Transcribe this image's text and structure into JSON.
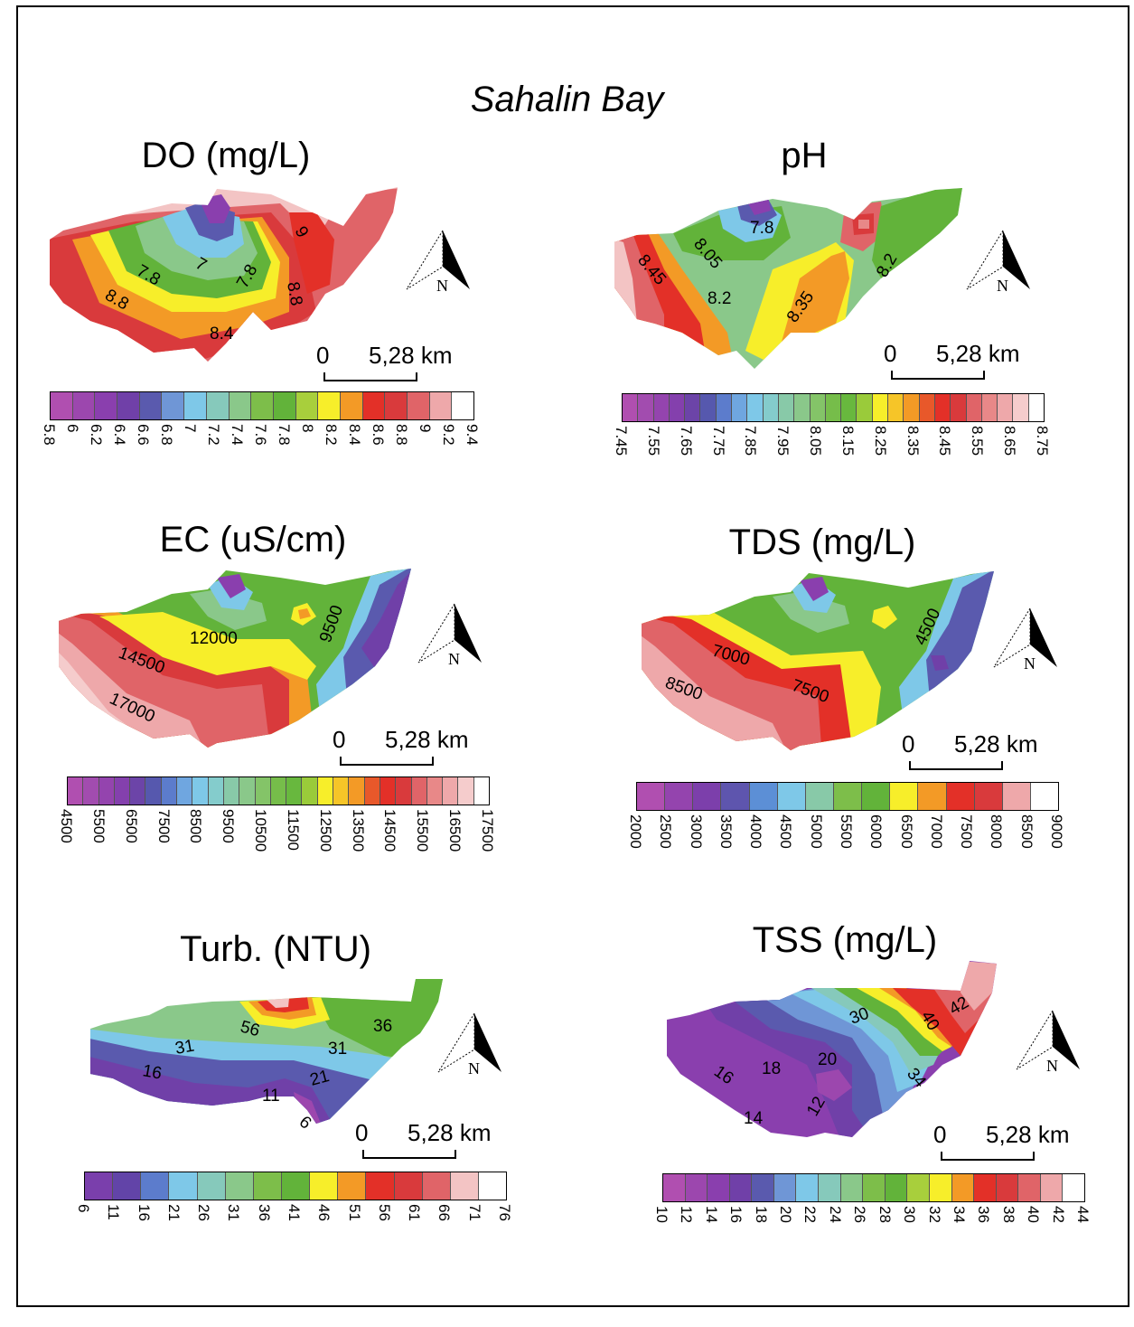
{
  "title": "Sahalin Bay",
  "north_label": "N",
  "scale": {
    "zero": "0",
    "distance": "5,28",
    "unit": "km"
  },
  "panels": [
    {
      "id": "do",
      "title": "DO  (mg/L)",
      "legend_ticks": [
        "5.8",
        "6",
        "6.2",
        "6.4",
        "6.6",
        "6.8",
        "7",
        "7.2",
        "7.4",
        "7.6",
        "7.8",
        "8",
        "8.2",
        "8.4",
        "8.6",
        "8.8",
        "9",
        "9.2",
        "9.4"
      ],
      "legend_colors": [
        "#b04fb0",
        "#9c47ae",
        "#8a3fae",
        "#7040a8",
        "#5a5aae",
        "#6f96d6",
        "#7ec8e8",
        "#86c9bb",
        "#8ac88a",
        "#7dbe4a",
        "#62b33a",
        "#a8cf3c",
        "#f7ee2a",
        "#f39a26",
        "#e33028",
        "#d93a3c",
        "#e06468",
        "#eea8aa",
        "#ffffff"
      ],
      "contour_labels": [
        "7.8",
        "7",
        "7.8",
        "9",
        "8.8",
        "8.8",
        "8.4"
      ]
    },
    {
      "id": "ph",
      "title": "pH",
      "legend_ticks": [
        "7.45",
        "7.55",
        "7.65",
        "7.75",
        "7.85",
        "7.95",
        "8.05",
        "8.15",
        "8.25",
        "8.35",
        "8.45",
        "8.55",
        "8.65",
        "8.75"
      ],
      "legend_colors": [
        "#b04fb0",
        "#a24caf",
        "#9444ae",
        "#8440ad",
        "#6c44a8",
        "#5658ae",
        "#5c7ccc",
        "#6fa6e0",
        "#7ec8e8",
        "#84cccc",
        "#88c9a8",
        "#8ac88a",
        "#84c468",
        "#76bd4a",
        "#68b83e",
        "#9acb3a",
        "#f7ee2a",
        "#f6c528",
        "#f39a26",
        "#e8582a",
        "#e33028",
        "#d93a3c",
        "#e06468",
        "#e88888",
        "#eea8aa",
        "#f5cccc",
        "#ffffff"
      ],
      "contour_labels": [
        "8.45",
        "8.05",
        "7.8",
        "8.2",
        "8.35",
        "8.2"
      ]
    },
    {
      "id": "ec",
      "title": "EC (uS/cm)",
      "legend_ticks": [
        "4500",
        "5500",
        "6500",
        "7500",
        "8500",
        "9500",
        "10500",
        "11500",
        "12500",
        "13500",
        "14500",
        "15500",
        "16500",
        "17500"
      ],
      "legend_colors": [
        "#b04fb0",
        "#a24caf",
        "#9444ae",
        "#8440ad",
        "#6c44a8",
        "#5658ae",
        "#5c7ccc",
        "#6fa6e0",
        "#7ec8e8",
        "#84cccc",
        "#88c9a8",
        "#8ac88a",
        "#84c468",
        "#76bd4a",
        "#68b83e",
        "#9acb3a",
        "#f7ee2a",
        "#f6c528",
        "#f39a26",
        "#e8582a",
        "#e33028",
        "#d93a3c",
        "#e06468",
        "#e88888",
        "#eea8aa",
        "#f5cccc",
        "#ffffff"
      ],
      "contour_labels": [
        "12000",
        "14500",
        "17000",
        "9500"
      ]
    },
    {
      "id": "tds",
      "title": "TDS (mg/L)",
      "legend_ticks": [
        "2000",
        "2500",
        "3000",
        "3500",
        "4000",
        "4500",
        "5000",
        "5500",
        "6000",
        "6500",
        "7000",
        "7500",
        "8000",
        "8500",
        "9000"
      ],
      "legend_colors": [
        "#b04fb0",
        "#9444ae",
        "#7c3fab",
        "#5e55ae",
        "#5c8fd6",
        "#7ec8e8",
        "#88c9a8",
        "#7dbe4a",
        "#62b33a",
        "#f7ee2a",
        "#f39a26",
        "#e33028",
        "#d93a3c",
        "#eea8aa",
        "#ffffff"
      ],
      "contour_labels": [
        "7000",
        "8500",
        "7500",
        "4500"
      ]
    },
    {
      "id": "turb",
      "title": "Turb. (NTU)",
      "legend_ticks": [
        "6",
        "11",
        "16",
        "21",
        "26",
        "31",
        "36",
        "41",
        "46",
        "51",
        "56",
        "61",
        "66",
        "71",
        "76"
      ],
      "legend_colors": [
        "#7a3fac",
        "#6244a8",
        "#5c7ccc",
        "#7ec8e8",
        "#86c9bb",
        "#8ac88a",
        "#7dbe4a",
        "#62b33a",
        "#f7ee2a",
        "#f39a26",
        "#e33028",
        "#d93a3c",
        "#e06468",
        "#f3c4c4",
        "#ffffff"
      ],
      "contour_labels": [
        "56",
        "31",
        "36",
        "31",
        "16",
        "21",
        "11",
        "6"
      ]
    },
    {
      "id": "tss",
      "title": "TSS (mg/L)",
      "legend_ticks": [
        "10",
        "12",
        "14",
        "16",
        "18",
        "20",
        "22",
        "24",
        "26",
        "28",
        "30",
        "32",
        "34",
        "36",
        "38",
        "40",
        "42",
        "44"
      ],
      "legend_colors": [
        "#b04fb0",
        "#9c47ae",
        "#8a3fae",
        "#7040a8",
        "#5a5aae",
        "#6f96d6",
        "#7ec8e8",
        "#86c9bb",
        "#8ac88a",
        "#7dbe4a",
        "#62b33a",
        "#a8cf3c",
        "#f7ee2a",
        "#f39a26",
        "#e33028",
        "#d93a3c",
        "#e06468",
        "#eea8aa",
        "#ffffff"
      ],
      "contour_labels": [
        "30",
        "40",
        "42",
        "16",
        "18",
        "20",
        "34",
        "12",
        "14"
      ]
    }
  ]
}
